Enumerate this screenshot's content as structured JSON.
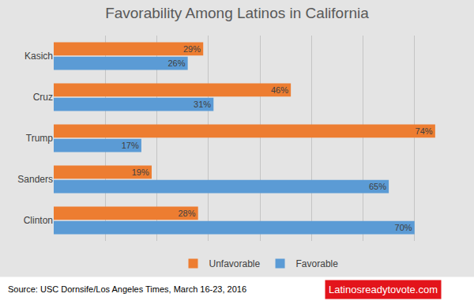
{
  "chart_data": {
    "type": "bar",
    "orientation": "horizontal",
    "title": "Favorability Among Latinos in California",
    "categories": [
      "Kasich",
      "Cruz",
      "Trump",
      "Sanders",
      "Clinton"
    ],
    "series": [
      {
        "name": "Unfavorable",
        "color": "#ed7d31",
        "values": [
          29,
          46,
          74,
          19,
          28
        ],
        "value_labels": [
          "29%",
          "46%",
          "74%",
          "19%",
          "28%"
        ]
      },
      {
        "name": "Favorable",
        "color": "#5b9bd5",
        "values": [
          26,
          31,
          17,
          65,
          70
        ],
        "value_labels": [
          "26%",
          "31%",
          "17%",
          "65%",
          "70%"
        ]
      }
    ],
    "xlim": [
      0,
      80
    ],
    "xticks": [
      0,
      10,
      20,
      30,
      40,
      50,
      60,
      70,
      80
    ],
    "grid": true,
    "legend": "bottom",
    "data_labels": true,
    "tick_labels": "y",
    "annotations": [
      "Source: USC Dornsife/Los Angeles Times, March 16-23, 2016",
      "Latinosreadytovote.com"
    ]
  }
}
